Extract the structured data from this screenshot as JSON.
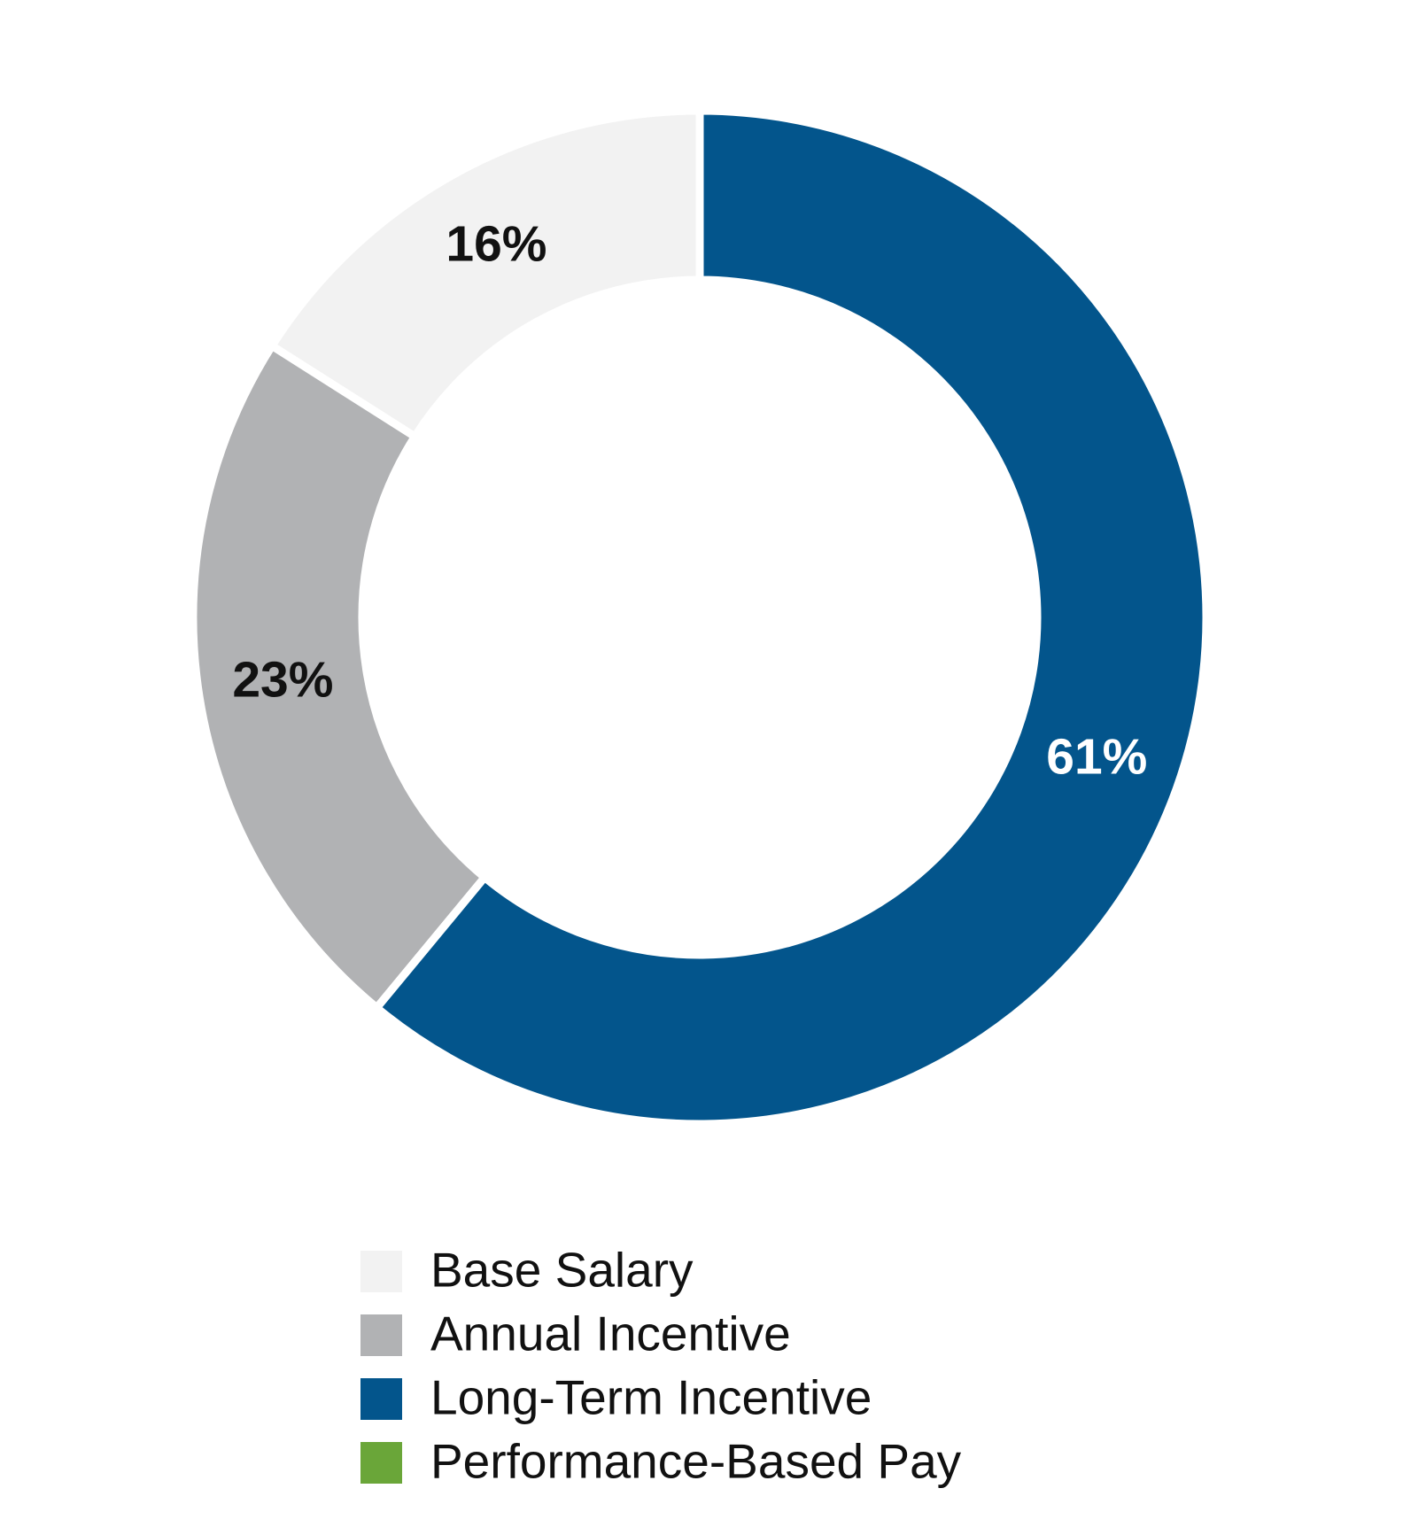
{
  "chart_data": {
    "type": "donut",
    "categories": [
      "Base Salary",
      "Annual Incentive",
      "Long-Term Incentive",
      "Performance-Based Pay"
    ],
    "values": [
      16,
      23,
      61,
      null
    ],
    "value_labels": [
      "16%",
      "23%",
      "61%",
      null
    ],
    "colors": [
      "#f2f2f2",
      "#b1b2b4",
      "#03558c",
      "#6aa639"
    ],
    "direction": "counterclockwise",
    "start": "top"
  }
}
